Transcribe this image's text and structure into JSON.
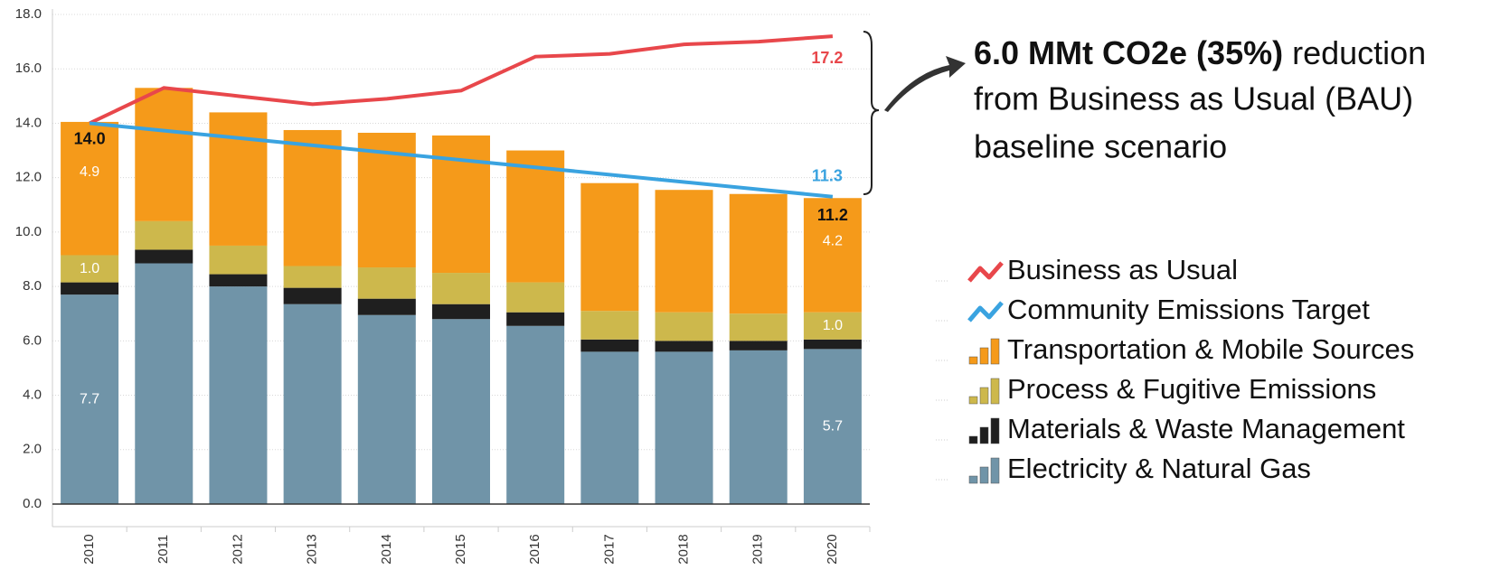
{
  "chart_data": {
    "type": "bar",
    "categories": [
      "2010",
      "2011",
      "2012",
      "2013",
      "2014",
      "2015",
      "2016",
      "2017",
      "2018",
      "2019",
      "2020"
    ],
    "ylim": [
      0,
      18
    ],
    "yticks": [
      {
        "value": 0,
        "label": "0.0"
      },
      {
        "value": 2,
        "label": "2.0"
      },
      {
        "value": 4,
        "label": "4.0"
      },
      {
        "value": 6,
        "label": "6.0"
      },
      {
        "value": 8,
        "label": "8.0"
      },
      {
        "value": 10,
        "label": "10.0"
      },
      {
        "value": 12,
        "label": "12.0"
      },
      {
        "value": 14,
        "label": "14.0"
      },
      {
        "value": 16,
        "label": "16.0"
      },
      {
        "value": 18,
        "label": "18.0"
      }
    ],
    "grid": true,
    "series": [
      {
        "name": "Business as Usual",
        "type": "line",
        "color": "#e8474b",
        "values": [
          14.0,
          15.3,
          15.0,
          14.7,
          14.9,
          15.2,
          16.45,
          16.55,
          16.9,
          17.0,
          17.2
        ],
        "value_labels": [
          null,
          null,
          null,
          null,
          null,
          null,
          null,
          null,
          null,
          null,
          "17.2"
        ]
      },
      {
        "name": "Community Emissions Target",
        "type": "line",
        "color": "#3aa3e0",
        "values": [
          14.0,
          13.73,
          13.46,
          13.19,
          12.92,
          12.65,
          12.38,
          12.11,
          11.84,
          11.57,
          11.3
        ],
        "value_labels": [
          null,
          null,
          null,
          null,
          null,
          null,
          null,
          null,
          null,
          null,
          "11.3"
        ]
      },
      {
        "name": "Transportation & Mobile Sources",
        "type": "bar",
        "color": "#f59a1a",
        "values": [
          4.9,
          4.9,
          4.9,
          5.0,
          4.95,
          5.05,
          4.85,
          4.7,
          4.5,
          4.4,
          4.2
        ],
        "value_labels": [
          "4.9",
          null,
          null,
          null,
          null,
          null,
          null,
          null,
          null,
          null,
          "4.2"
        ]
      },
      {
        "name": "Process & Fugitive Emissions",
        "type": "bar",
        "color": "#cdb84c",
        "values": [
          1.0,
          1.05,
          1.05,
          0.8,
          1.15,
          1.15,
          1.1,
          1.05,
          1.05,
          1.0,
          1.0
        ],
        "value_labels": [
          "1.0",
          null,
          null,
          null,
          null,
          null,
          null,
          null,
          null,
          null,
          "1.0"
        ]
      },
      {
        "name": "Materials & Waste Management",
        "type": "bar",
        "color": "#1f1f1f",
        "values": [
          0.45,
          0.5,
          0.45,
          0.6,
          0.6,
          0.55,
          0.5,
          0.45,
          0.4,
          0.35,
          0.35
        ]
      },
      {
        "name": "Electricity & Natural Gas",
        "type": "bar",
        "color": "#7094a8",
        "values": [
          7.7,
          8.85,
          8.0,
          7.35,
          6.95,
          6.8,
          6.55,
          5.6,
          5.6,
          5.65,
          5.7
        ],
        "value_labels": [
          "7.7",
          null,
          null,
          null,
          null,
          null,
          null,
          null,
          null,
          null,
          "5.7"
        ]
      }
    ],
    "total_labels": [
      "14.0",
      null,
      null,
      null,
      null,
      null,
      null,
      null,
      null,
      null,
      "11.2"
    ],
    "annotation": {
      "bold": "6.0 MMt CO2e (35%)",
      "lines": [
        "reduction",
        "from Business as Usual (BAU)",
        "baseline scenario"
      ]
    }
  }
}
